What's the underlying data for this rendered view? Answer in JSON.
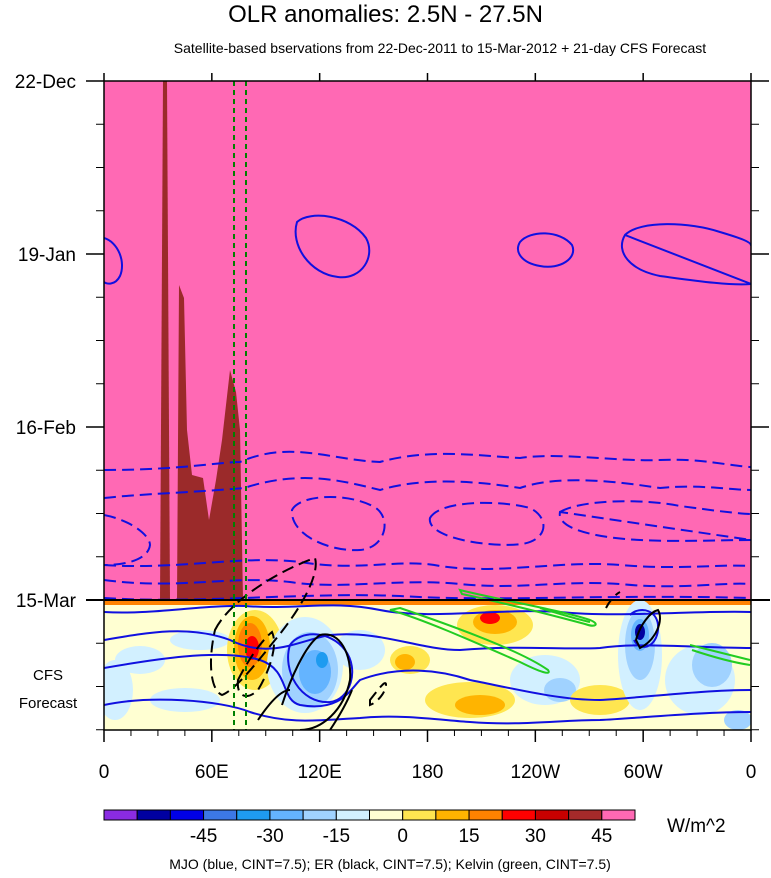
{
  "chart_data": {
    "type": "heatmap",
    "title": "OLR anomalies: 2.5N - 27.5N",
    "subtitle": "Satellite-based bservations from 22-Dec-2011 to 15-Mar-2012 + 21-day CFS Forecast",
    "x_ticks": [
      "0",
      "60E",
      "120E",
      "180",
      "120W",
      "60W",
      "0"
    ],
    "x_tick_lon": [
      0,
      60,
      120,
      180,
      240,
      300,
      360
    ],
    "y_ticks": [
      "22-Dec",
      "19-Jan",
      "16-Feb",
      "15-Mar"
    ],
    "y_tick_day": [
      0,
      28,
      56,
      84
    ],
    "forecast_label": [
      "CFS",
      "Forecast"
    ],
    "xlim": [
      0,
      360
    ],
    "ylim_days": [
      0,
      105
    ],
    "observed_end_day": 84,
    "colorbar": {
      "levels": [
        -60,
        -52.5,
        -45,
        -37.5,
        -30,
        -22.5,
        -15,
        -7.5,
        0,
        7.5,
        15,
        22.5,
        30,
        37.5,
        45,
        52.5
      ],
      "labels": [
        "-45",
        "-30",
        "-15",
        "0",
        "15",
        "30",
        "45"
      ],
      "label_values": [
        -45,
        -30,
        -15,
        0,
        15,
        30,
        45
      ],
      "units": "W/m^2",
      "colors": [
        "#8a2be2",
        "#0000a0",
        "#0000e6",
        "#3c78e6",
        "#1e9bf0",
        "#64b4ff",
        "#a0d2ff",
        "#d2f0ff",
        "#ffffd2",
        "#ffe650",
        "#ffb400",
        "#ff8200",
        "#ff0000",
        "#c80000",
        "#a52a2a",
        "#ff69b4"
      ]
    },
    "colors": {
      "background_fill": "#ff69b4",
      "extreme_fill": "#9b2a2a",
      "mjo": "#1010e0",
      "er": "#000000",
      "kelvin": "#22cc22",
      "reference_lines": "#008000"
    },
    "reference_lines_lon": [
      73,
      80
    ],
    "legend_caption": "MJO (blue, CINT=7.5); ER (black, CINT=7.5); Kelvin (green, CINT=7.5)"
  }
}
